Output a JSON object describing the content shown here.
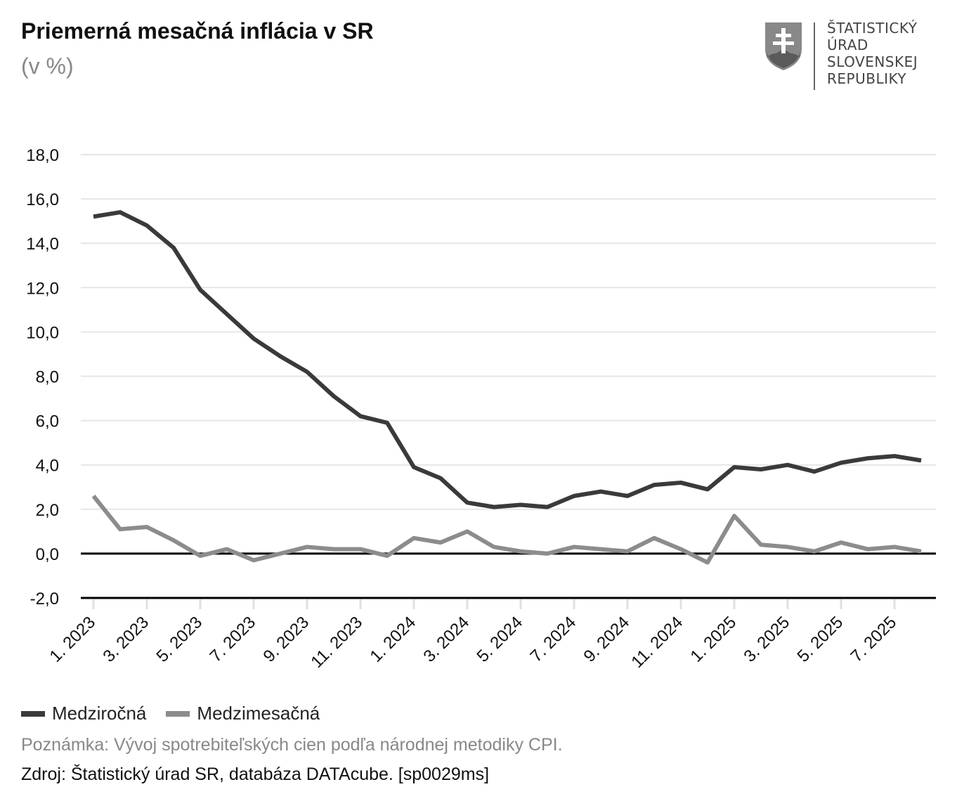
{
  "header": {
    "title": "Priemerná mesačná inflácia v SR",
    "subtitle": "(v %)"
  },
  "logo": {
    "text": [
      "ŠTATISTICKÝ",
      "ÚRAD",
      "SLOVENSKEJ",
      "REPUBLIKY"
    ]
  },
  "chart_data": {
    "type": "line",
    "title": "Priemerná mesačná inflácia v SR",
    "subtitle": "(v %)",
    "ylim": [
      -2,
      18
    ],
    "yticks": [
      "-2,0",
      "0,0",
      "2,0",
      "4,0",
      "6,0",
      "8,0",
      "10,0",
      "12,0",
      "14,0",
      "16,0",
      "18,0"
    ],
    "ytick_values": [
      -2,
      0,
      2,
      4,
      6,
      8,
      10,
      12,
      14,
      16,
      18
    ],
    "grid": true,
    "legend_placement": "bottom-left",
    "x": [
      "1. 2023",
      "2. 2023",
      "3. 2023",
      "4. 2023",
      "5. 2023",
      "6. 2023",
      "7. 2023",
      "8. 2023",
      "9. 2023",
      "10. 2023",
      "11. 2023",
      "12. 2023",
      "1. 2024",
      "2. 2024",
      "3. 2024",
      "4. 2024",
      "5. 2024",
      "6. 2024",
      "7. 2024",
      "8. 2024",
      "9. 2024",
      "10. 2024",
      "11. 2024",
      "12. 2024",
      "1. 2025",
      "2. 2025",
      "3. 2025",
      "4. 2025",
      "5. 2025",
      "6. 2025",
      "7. 2025",
      "8. 2025"
    ],
    "xtick_labels": [
      "1. 2023",
      "3. 2023",
      "5. 2023",
      "7. 2023",
      "9. 2023",
      "11. 2023",
      "1. 2024",
      "3. 2024",
      "5. 2024",
      "7. 2024",
      "9. 2024",
      "11. 2024",
      "1. 2025",
      "3. 2025",
      "5. 2025",
      "7. 2025"
    ],
    "series": [
      {
        "name": "Medziročná",
        "color": "#3a3a3a",
        "values": [
          15.2,
          15.4,
          14.8,
          13.8,
          11.9,
          10.8,
          9.7,
          8.9,
          8.2,
          7.1,
          6.2,
          5.9,
          3.9,
          3.4,
          2.3,
          2.1,
          2.2,
          2.1,
          2.6,
          2.8,
          2.6,
          3.1,
          3.2,
          2.9,
          3.9,
          3.8,
          4.0,
          3.7,
          4.1,
          4.3,
          4.4,
          4.2
        ]
      },
      {
        "name": "Medzimesačná",
        "color": "#8c8c8c",
        "values": [
          2.6,
          1.1,
          1.2,
          0.6,
          -0.1,
          0.2,
          -0.3,
          0.0,
          0.3,
          0.2,
          0.2,
          -0.1,
          0.7,
          0.5,
          1.0,
          0.3,
          0.1,
          0.0,
          0.3,
          0.2,
          0.1,
          0.7,
          0.2,
          -0.4,
          1.7,
          0.4,
          0.3,
          0.1,
          0.5,
          0.2,
          0.3,
          0.1
        ]
      }
    ]
  },
  "footer": {
    "note": "Poznámka: Vývoj spotrebiteľských cien podľa národnej metodiky CPI.",
    "source": "Zdroj: Štatistický úrad SR, databáza DATAcube. [sp0029ms]"
  }
}
